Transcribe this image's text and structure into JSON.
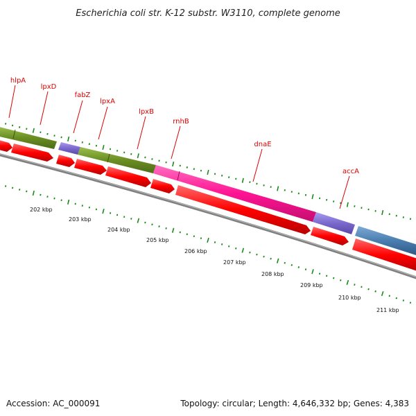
{
  "title": "Escherichia coli str. K-12 substr. W3110, complete genome",
  "footer": {
    "accession": "Accession: AC_000091",
    "topology": "Topology: circular; Length: 4,646,332 bp; Genes: 4,383"
  },
  "genes": [
    {
      "name": "hlpA"
    },
    {
      "name": "lpxD"
    },
    {
      "name": "fabZ"
    },
    {
      "name": "lpxA"
    },
    {
      "name": "lpxB"
    },
    {
      "name": "rnhB"
    },
    {
      "name": "dnaE"
    },
    {
      "name": "accA"
    }
  ],
  "kbp_ticks": [
    "202 kbp",
    "203 kbp",
    "204 kbp",
    "205 kbp",
    "206 kbp",
    "207 kbp",
    "208 kbp",
    "209 kbp",
    "210 kbp",
    "211 kbp"
  ],
  "colors": {
    "olive": "#6b8e23",
    "purple": "#7b68cc",
    "magenta": "#ff1493",
    "steelblue": "#4a7eb0",
    "red_cds": "#ff0000",
    "backbone": "#808080",
    "tick_green": "#1a8a1a",
    "label_red": "#dd0000"
  }
}
